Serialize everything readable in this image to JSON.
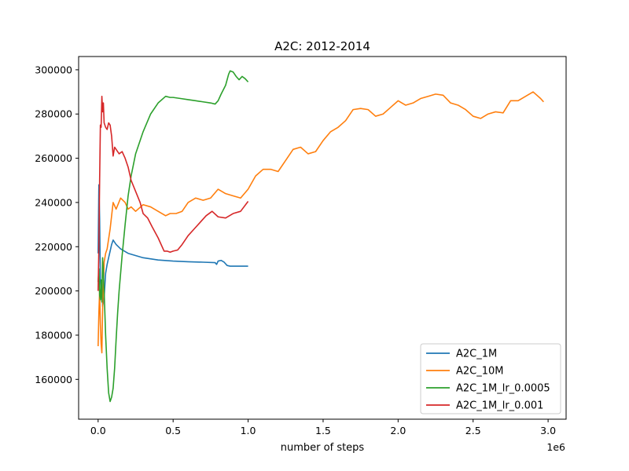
{
  "chart_data": {
    "type": "line",
    "title": "A2C: 2012-2014",
    "xlabel": "number of steps",
    "ylabel": "",
    "x_offset_label": "1e6",
    "xlim": [
      -0.13,
      3.12
    ],
    "ylim": [
      142000,
      306000
    ],
    "x_ticks": [
      0.0,
      0.5,
      1.0,
      1.5,
      2.0,
      2.5,
      3.0
    ],
    "x_tick_labels": [
      "0.0",
      "0.5",
      "1.0",
      "1.5",
      "2.0",
      "2.5",
      "3.0"
    ],
    "y_ticks": [
      160000,
      180000,
      200000,
      220000,
      240000,
      260000,
      280000,
      300000
    ],
    "y_tick_labels": [
      "160000",
      "180000",
      "200000",
      "220000",
      "240000",
      "260000",
      "280000",
      "300000"
    ],
    "grid": false,
    "legend_position": "lower-right",
    "series": [
      {
        "name": "A2C_1M",
        "color": "#1f77b4",
        "x": [
          0.0,
          0.005,
          0.01,
          0.015,
          0.02,
          0.025,
          0.03,
          0.04,
          0.05,
          0.06,
          0.07,
          0.08,
          0.09,
          0.1,
          0.12,
          0.15,
          0.2,
          0.3,
          0.4,
          0.5,
          0.6,
          0.7,
          0.78,
          0.79,
          0.8,
          0.82,
          0.84,
          0.86,
          0.88,
          0.9,
          0.95,
          1.0
        ],
        "y": [
          217000,
          248000,
          233000,
          205000,
          199000,
          203000,
          193000,
          197000,
          208000,
          212000,
          215000,
          218000,
          221000,
          223000,
          221000,
          219000,
          217000,
          215000,
          214000,
          213500,
          213200,
          213000,
          212800,
          212000,
          213500,
          213800,
          213000,
          211500,
          211200,
          211200,
          211200,
          211200
        ]
      },
      {
        "name": "A2C_10M",
        "color": "#ff7f0e",
        "x": [
          0.0,
          0.005,
          0.01,
          0.015,
          0.02,
          0.025,
          0.03,
          0.04,
          0.05,
          0.06,
          0.08,
          0.1,
          0.12,
          0.15,
          0.18,
          0.2,
          0.22,
          0.25,
          0.3,
          0.35,
          0.4,
          0.45,
          0.48,
          0.52,
          0.56,
          0.6,
          0.65,
          0.7,
          0.75,
          0.8,
          0.85,
          0.9,
          0.95,
          1.0,
          1.05,
          1.1,
          1.15,
          1.2,
          1.25,
          1.3,
          1.35,
          1.4,
          1.45,
          1.5,
          1.55,
          1.6,
          1.65,
          1.7,
          1.75,
          1.8,
          1.85,
          1.9,
          1.95,
          2.0,
          2.05,
          2.1,
          2.15,
          2.2,
          2.25,
          2.3,
          2.35,
          2.4,
          2.45,
          2.5,
          2.55,
          2.6,
          2.65,
          2.7,
          2.75,
          2.8,
          2.85,
          2.9,
          2.95,
          2.97
        ],
        "y": [
          175000,
          190000,
          200000,
          185000,
          176000,
          172000,
          192000,
          213000,
          217000,
          219000,
          228000,
          240000,
          237000,
          242000,
          240000,
          237000,
          238000,
          236000,
          239000,
          238000,
          236000,
          234000,
          235000,
          235000,
          236000,
          240000,
          242000,
          241000,
          242000,
          246000,
          244000,
          243000,
          242000,
          246000,
          252000,
          255000,
          255000,
          254000,
          259000,
          264000,
          265000,
          262000,
          263000,
          268000,
          272000,
          274000,
          277000,
          282000,
          282500,
          282000,
          279000,
          280000,
          283000,
          286000,
          284000,
          285000,
          287000,
          288000,
          289000,
          288500,
          285000,
          284000,
          282000,
          279000,
          278000,
          280000,
          281000,
          280500,
          286000,
          286000,
          288000,
          290000,
          287000,
          285500
        ]
      },
      {
        "name": "A2C_1M_lr_0.0005",
        "color": "#2ca02c",
        "x": [
          0.0,
          0.005,
          0.01,
          0.015,
          0.02,
          0.025,
          0.03,
          0.035,
          0.04,
          0.05,
          0.06,
          0.07,
          0.08,
          0.09,
          0.1,
          0.11,
          0.12,
          0.13,
          0.14,
          0.16,
          0.18,
          0.2,
          0.22,
          0.25,
          0.3,
          0.35,
          0.4,
          0.45,
          0.48,
          0.5,
          0.55,
          0.6,
          0.65,
          0.7,
          0.75,
          0.78,
          0.8,
          0.82,
          0.85,
          0.87,
          0.88,
          0.9,
          0.92,
          0.94,
          0.96,
          0.98,
          1.0
        ],
        "y": [
          204000,
          210000,
          198000,
          196000,
          205000,
          195000,
          215000,
          208000,
          200000,
          180000,
          165000,
          154000,
          150000,
          152000,
          156000,
          165000,
          178000,
          190000,
          200000,
          216000,
          230000,
          243000,
          252000,
          262000,
          272000,
          280000,
          285000,
          288000,
          287500,
          287500,
          287000,
          286500,
          286000,
          285500,
          285000,
          284500,
          286000,
          289000,
          293000,
          298000,
          299500,
          299000,
          297000,
          295500,
          297000,
          296000,
          294500
        ]
      },
      {
        "name": "A2C_1M_lr_0.001",
        "color": "#d62728",
        "x": [
          0.0,
          0.005,
          0.01,
          0.015,
          0.02,
          0.025,
          0.03,
          0.035,
          0.04,
          0.05,
          0.06,
          0.07,
          0.08,
          0.09,
          0.1,
          0.11,
          0.12,
          0.14,
          0.16,
          0.18,
          0.2,
          0.22,
          0.25,
          0.28,
          0.3,
          0.33,
          0.36,
          0.4,
          0.44,
          0.46,
          0.48,
          0.5,
          0.53,
          0.56,
          0.6,
          0.64,
          0.68,
          0.72,
          0.76,
          0.8,
          0.85,
          0.9,
          0.95,
          1.0
        ],
        "y": [
          200000,
          220000,
          250000,
          275000,
          274000,
          288000,
          281000,
          285000,
          276000,
          274000,
          273000,
          276000,
          275000,
          270000,
          261000,
          265000,
          264000,
          262000,
          263000,
          260000,
          256000,
          250000,
          245000,
          240000,
          235000,
          233000,
          229000,
          224000,
          218000,
          218000,
          217500,
          218000,
          218500,
          221000,
          225000,
          228000,
          231000,
          234000,
          236000,
          233500,
          233000,
          235000,
          236000,
          240500
        ]
      }
    ]
  }
}
